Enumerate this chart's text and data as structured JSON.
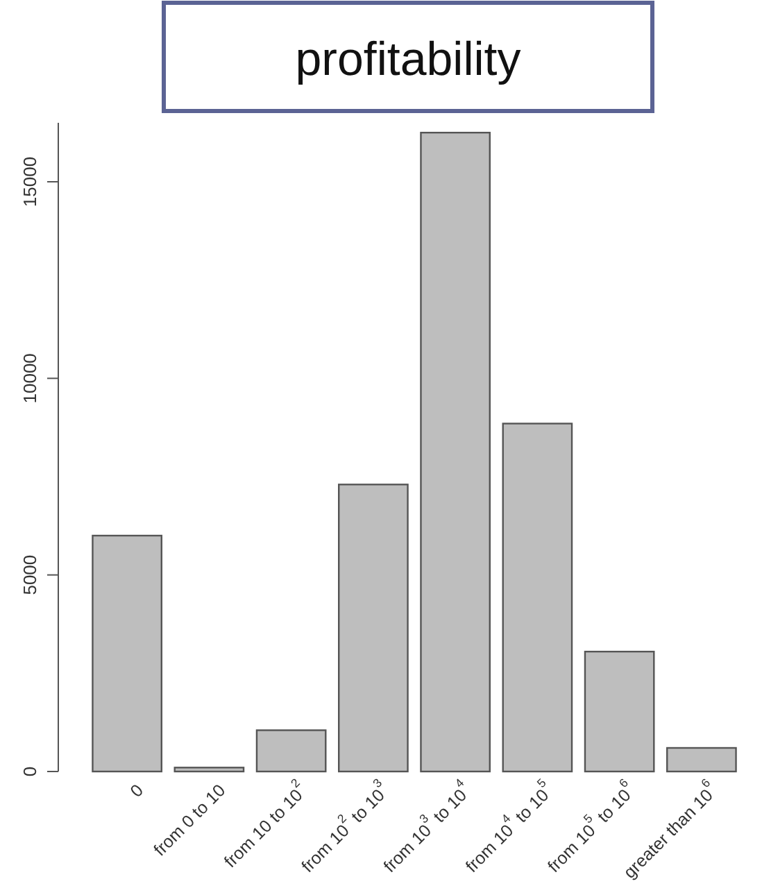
{
  "chart_data": {
    "type": "bar",
    "title": "profitability",
    "categories": [
      "0",
      "from 0 to 10",
      "from 10 to 10$^{2}$",
      "from 10$^{2}$ to 10$^{3}$",
      "from 10$^{3}$ to 10$^{4}$",
      "from 10$^{4}$ to 10$^{5}$",
      "from 10$^{5}$ to 10$^{6}$",
      "greater than  10$^{6}$"
    ],
    "values": [
      6000,
      100,
      1050,
      7300,
      16250,
      8850,
      3050,
      600
    ],
    "color": "#bebebe",
    "ylim": [
      0,
      16500
    ],
    "yticks": [
      0,
      5000,
      10000,
      15000
    ],
    "grid": false
  }
}
